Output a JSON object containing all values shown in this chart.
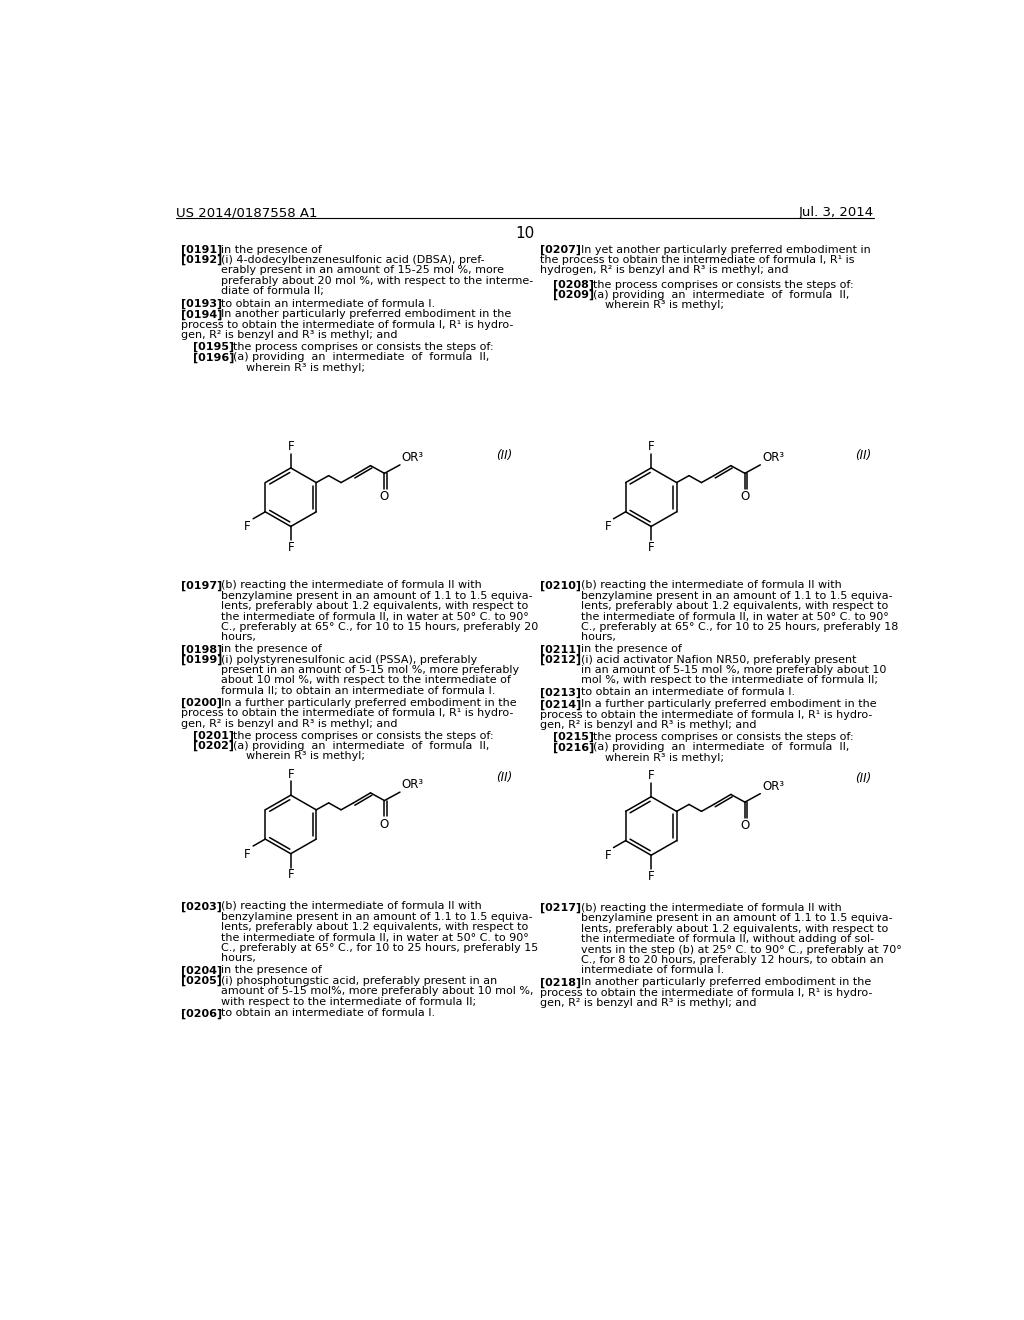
{
  "background_color": "#ffffff",
  "header_left": "US 2014/0187558 A1",
  "header_right": "Jul. 3, 2014",
  "page_number": "10",
  "font_size": 8.0,
  "tag_font_size": 8.0
}
